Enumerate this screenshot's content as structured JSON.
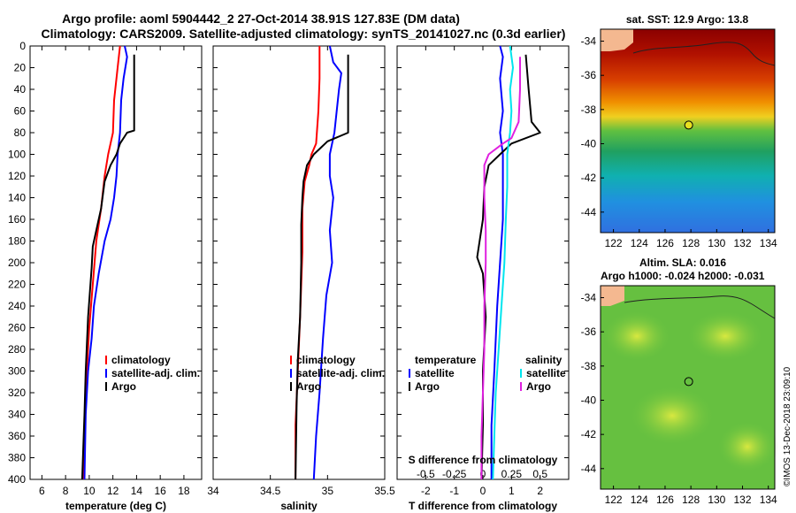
{
  "title_line1": "Argo profile: aoml 5904442_2 27-Oct-2014 38.91S 127.83E (DM data)",
  "title_line2": "Climatology: CARS2009. Satellite-adjusted climatology: synTS_20141027.nc (0.3d earlier)",
  "sst_title": "sat. SST: 12.9 Argo: 13.8",
  "sla_title1": "Altim. SLA: 0.016",
  "sla_title2": "Argo h1000: -0.024 h2000: -0.031",
  "watermark": "©IMOS 13-Dec-2018 23:09:10",
  "colors": {
    "climatology": "#ff0000",
    "satellite": "#0000ff",
    "argo": "#000000",
    "sat_sal": "#00e5ee",
    "argo_sal": "#e020e0"
  },
  "chart_data": [
    {
      "type": "line",
      "name": "temperature",
      "xlabel": "temperature (deg C)",
      "xlim": [
        5,
        19.5
      ],
      "xticks": [
        "6",
        "8",
        "10",
        "12",
        "14",
        "16",
        "18"
      ],
      "xtick_values": [
        6,
        8,
        10,
        12,
        14,
        16,
        18
      ],
      "ylim": [
        400,
        0
      ],
      "yticks": [
        "0",
        "20",
        "40",
        "60",
        "80",
        "100",
        "120",
        "140",
        "160",
        "180",
        "200",
        "220",
        "240",
        "260",
        "280",
        "300",
        "320",
        "340",
        "360",
        "380",
        "400"
      ],
      "legend": [
        "climatology",
        "satellite-adj. clim.",
        "Argo"
      ],
      "series": [
        {
          "name": "climatology",
          "color": "#ff0000",
          "points": [
            [
              12.6,
              0
            ],
            [
              12.4,
              20
            ],
            [
              12.1,
              50
            ],
            [
              12.0,
              80
            ],
            [
              11.6,
              100
            ],
            [
              11.3,
              120
            ],
            [
              11.0,
              150
            ],
            [
              10.6,
              180
            ],
            [
              10.3,
              220
            ],
            [
              10.0,
              260
            ],
            [
              9.8,
              300
            ],
            [
              9.6,
              350
            ],
            [
              9.5,
              400
            ]
          ]
        },
        {
          "name": "satellite-adj. clim.",
          "color": "#0000ff",
          "points": [
            [
              13.0,
              0
            ],
            [
              13.2,
              10
            ],
            [
              12.9,
              30
            ],
            [
              12.7,
              50
            ],
            [
              12.6,
              80
            ],
            [
              12.4,
              100
            ],
            [
              12.3,
              120
            ],
            [
              12.1,
              140
            ],
            [
              11.8,
              160
            ],
            [
              11.3,
              180
            ],
            [
              10.8,
              210
            ],
            [
              10.4,
              240
            ],
            [
              10.2,
              270
            ],
            [
              9.9,
              300
            ],
            [
              9.7,
              340
            ],
            [
              9.6,
              400
            ]
          ]
        },
        {
          "name": "Argo",
          "color": "#000000",
          "points": [
            [
              13.8,
              8
            ],
            [
              13.8,
              78
            ],
            [
              13.2,
              80
            ],
            [
              12.6,
              90
            ],
            [
              12.3,
              100
            ],
            [
              11.8,
              110
            ],
            [
              11.3,
              125
            ],
            [
              11.0,
              150
            ],
            [
              10.6,
              170
            ],
            [
              10.3,
              185
            ],
            [
              10.2,
              205
            ],
            [
              9.9,
              250
            ],
            [
              9.7,
              300
            ],
            [
              9.6,
              340
            ],
            [
              9.4,
              400
            ]
          ]
        }
      ]
    },
    {
      "type": "line",
      "name": "salinity",
      "xlabel": "salinity",
      "xlim": [
        34,
        35.5
      ],
      "xticks": [
        "34",
        "34.5",
        "35",
        "35.5"
      ],
      "xtick_values": [
        34,
        34.5,
        35,
        35.5
      ],
      "ylim": [
        400,
        0
      ],
      "legend": [
        "climatology",
        "satellite-adj. clim.",
        "Argo"
      ],
      "series": [
        {
          "name": "climatology",
          "color": "#ff0000",
          "points": [
            [
              34.93,
              0
            ],
            [
              34.93,
              30
            ],
            [
              34.92,
              60
            ],
            [
              34.9,
              90
            ],
            [
              34.86,
              100
            ],
            [
              34.84,
              110
            ],
            [
              34.8,
              125
            ],
            [
              34.78,
              150
            ],
            [
              34.78,
              190
            ],
            [
              34.76,
              250
            ],
            [
              34.74,
              300
            ],
            [
              34.72,
              350
            ],
            [
              34.72,
              400
            ]
          ]
        },
        {
          "name": "satellite-adj. clim.",
          "color": "#0000ff",
          "points": [
            [
              35.02,
              0
            ],
            [
              35.05,
              15
            ],
            [
              35.12,
              25
            ],
            [
              35.1,
              40
            ],
            [
              35.08,
              60
            ],
            [
              35.06,
              80
            ],
            [
              35.02,
              100
            ],
            [
              35.02,
              120
            ],
            [
              35.05,
              140
            ],
            [
              35.02,
              170
            ],
            [
              35.04,
              200
            ],
            [
              34.99,
              230
            ],
            [
              34.96,
              270
            ],
            [
              34.93,
              320
            ],
            [
              34.9,
              360
            ],
            [
              34.88,
              400
            ]
          ]
        },
        {
          "name": "Argo",
          "color": "#000000",
          "points": [
            [
              35.18,
              8
            ],
            [
              35.18,
              80
            ],
            [
              35.0,
              88
            ],
            [
              34.93,
              95
            ],
            [
              34.88,
              100
            ],
            [
              34.82,
              110
            ],
            [
              34.79,
              125
            ],
            [
              34.78,
              140
            ],
            [
              34.77,
              165
            ],
            [
              34.77,
              200
            ],
            [
              34.76,
              250
            ],
            [
              34.74,
              290
            ],
            [
              34.73,
              330
            ],
            [
              34.72,
              400
            ]
          ]
        }
      ]
    },
    {
      "type": "line",
      "name": "difference",
      "xlabel": "T difference from climatology",
      "xlabel_top": "S difference from climatology",
      "xlim": [
        -3,
        3
      ],
      "xticks": [
        "-2",
        "-1",
        "0",
        "1",
        "2"
      ],
      "xtick_values": [
        -2,
        -1,
        0,
        1,
        2
      ],
      "xticks_top": [
        "-0.5",
        "-0.25",
        "0",
        "0.25",
        "0.5"
      ],
      "ylim": [
        400,
        0
      ],
      "legend_temperature_title": "temperature",
      "legend_salinity_title": "salinity",
      "legend_labels": [
        "satellite",
        "Argo"
      ],
      "series": [
        {
          "name": "T satellite",
          "color": "#0000ff",
          "points": [
            [
              0.6,
              0
            ],
            [
              0.7,
              10
            ],
            [
              0.6,
              30
            ],
            [
              0.7,
              60
            ],
            [
              0.6,
              80
            ],
            [
              0.7,
              100
            ],
            [
              0.7,
              130
            ],
            [
              0.7,
              160
            ],
            [
              0.6,
              200
            ],
            [
              0.5,
              240
            ],
            [
              0.4,
              300
            ],
            [
              0.3,
              350
            ],
            [
              0.3,
              400
            ]
          ]
        },
        {
          "name": "T Argo",
          "color": "#000000",
          "points": [
            [
              1.5,
              8
            ],
            [
              1.6,
              40
            ],
            [
              1.7,
              70
            ],
            [
              2.0,
              80
            ],
            [
              1.0,
              90
            ],
            [
              0.6,
              100
            ],
            [
              0.2,
              110
            ],
            [
              0.05,
              130
            ],
            [
              0.0,
              160
            ],
            [
              -0.2,
              195
            ],
            [
              0.0,
              210
            ],
            [
              0.1,
              250
            ],
            [
              0.0,
              300
            ],
            [
              0.0,
              350
            ],
            [
              -0.05,
              400
            ]
          ]
        },
        {
          "name": "S satellite",
          "color": "#00e5ee",
          "points": [
            [
              0.95,
              0
            ],
            [
              1.05,
              20
            ],
            [
              0.95,
              40
            ],
            [
              1.0,
              60
            ],
            [
              0.95,
              80
            ],
            [
              0.85,
              100
            ],
            [
              0.85,
              130
            ],
            [
              0.8,
              160
            ],
            [
              0.75,
              200
            ],
            [
              0.65,
              240
            ],
            [
              0.55,
              280
            ],
            [
              0.45,
              320
            ],
            [
              0.4,
              360
            ],
            [
              0.35,
              400
            ]
          ]
        },
        {
          "name": "S Argo",
          "color": "#e020e0",
          "points": [
            [
              1.3,
              10
            ],
            [
              1.3,
              40
            ],
            [
              1.25,
              70
            ],
            [
              1.0,
              85
            ],
            [
              0.7,
              90
            ],
            [
              0.2,
              100
            ],
            [
              0.05,
              110
            ],
            [
              0.05,
              140
            ],
            [
              0.1,
              170
            ],
            [
              0.1,
              200
            ],
            [
              0.05,
              240
            ],
            [
              0.05,
              280
            ],
            [
              0.0,
              320
            ],
            [
              -0.05,
              360
            ],
            [
              -0.05,
              400
            ]
          ]
        }
      ]
    }
  ],
  "map_sst": {
    "yticks": [
      "-34",
      "-36",
      "-38",
      "-40",
      "-42",
      "-44"
    ],
    "ytick_values": [
      -34,
      -36,
      -38,
      -40,
      -42,
      -44
    ],
    "xticks": [
      "122",
      "124",
      "126",
      "128",
      "130",
      "132",
      "134"
    ],
    "xtick_values": [
      122,
      124,
      126,
      128,
      130,
      132,
      134
    ],
    "lon_range": [
      121,
      134.5
    ],
    "lat_range": [
      -33.3,
      -45.2
    ],
    "argo_lon": 127.83,
    "argo_lat": -38.91
  },
  "map_sla": {
    "yticks": [
      "-34",
      "-36",
      "-38",
      "-40",
      "-42",
      "-44"
    ],
    "ytick_values": [
      -34,
      -36,
      -38,
      -40,
      -42,
      -44
    ],
    "xticks": [
      "122",
      "124",
      "126",
      "128",
      "130",
      "132",
      "134"
    ],
    "xtick_values": [
      122,
      124,
      126,
      128,
      130,
      132,
      134
    ],
    "lon_range": [
      121,
      134.5
    ],
    "lat_range": [
      -33.3,
      -45.2
    ],
    "argo_lon": 127.83,
    "argo_lat": -38.91
  }
}
